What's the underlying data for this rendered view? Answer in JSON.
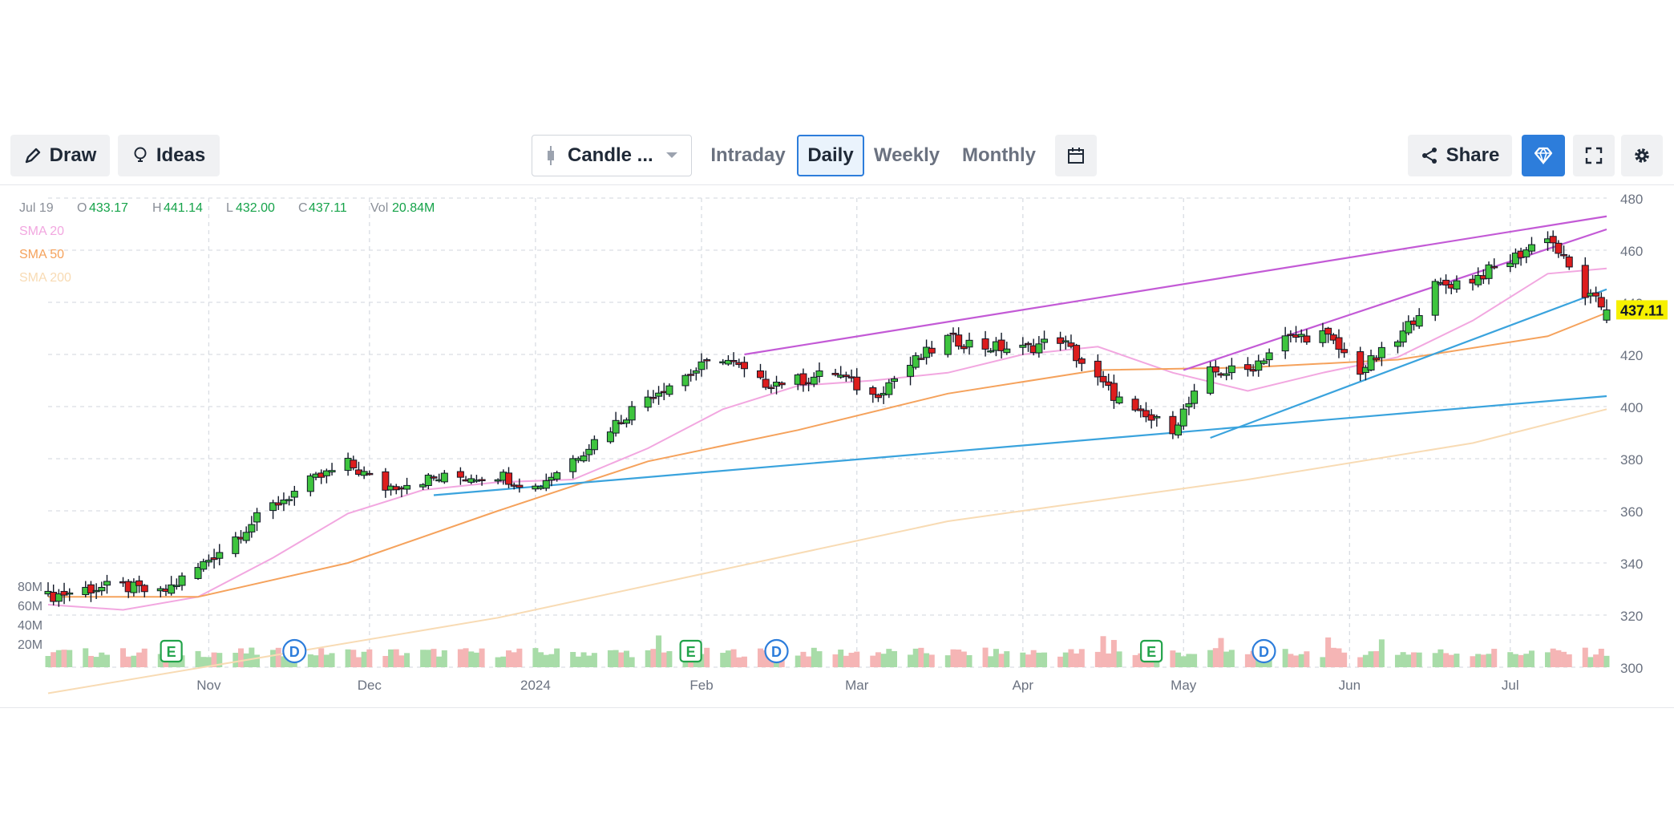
{
  "toolbar": {
    "draw_label": "Draw",
    "ideas_label": "Ideas",
    "chart_type_label": "Candle ...",
    "periods": [
      "Intraday",
      "Daily",
      "Weekly",
      "Monthly"
    ],
    "active_period": "Daily",
    "share_label": "Share"
  },
  "colors": {
    "up": "#3ec43e",
    "down": "#dd1d1d",
    "accent": "#2d7ddb",
    "sma20": "#f2a7e0",
    "sma50": "#f5a25c",
    "sma200": "#f8dbb4",
    "trend_purple": "#c35ad6",
    "trend_blue": "#3aa3dd",
    "price_tag": "#f6f000"
  },
  "ohlc": {
    "date": "Jul 19",
    "o_label": "O",
    "o": "433.17",
    "h_label": "H",
    "h": "441.14",
    "l_label": "L",
    "l": "432.00",
    "c_label": "C",
    "c": "437.11",
    "vol_label": "Vol",
    "vol": "20.84M"
  },
  "legend": [
    "SMA 20",
    "SMA 50",
    "SMA 200"
  ],
  "last_price": "437.11",
  "chart_data": {
    "type": "candlestick",
    "xlabel": "",
    "ylabel": "",
    "x_ticks": [
      "Nov",
      "Dec",
      "2024",
      "Feb",
      "Mar",
      "Apr",
      "May",
      "Jun",
      "Jul"
    ],
    "y_ticks": [
      300,
      320,
      340,
      360,
      380,
      400,
      420,
      440,
      460,
      480
    ],
    "ylim": [
      300,
      480
    ],
    "volume_ticks": [
      "80M",
      "60M",
      "40M",
      "20M"
    ],
    "grid": true,
    "legend_position": "top-left",
    "close_series": [
      {
        "date": "2023-10-02",
        "close": 327
      },
      {
        "date": "2023-10-09",
        "close": 330
      },
      {
        "date": "2023-10-16",
        "close": 331
      },
      {
        "date": "2023-10-23",
        "close": 328
      },
      {
        "date": "2023-10-30",
        "close": 338
      },
      {
        "date": "2023-11-06",
        "close": 350
      },
      {
        "date": "2023-11-13",
        "close": 362
      },
      {
        "date": "2023-11-20",
        "close": 371
      },
      {
        "date": "2023-11-27",
        "close": 378
      },
      {
        "date": "2023-12-04",
        "close": 369
      },
      {
        "date": "2023-12-11",
        "close": 372
      },
      {
        "date": "2023-12-18",
        "close": 373
      },
      {
        "date": "2023-12-25",
        "close": 374
      },
      {
        "date": "2024-01-01",
        "close": 369
      },
      {
        "date": "2024-01-08",
        "close": 380
      },
      {
        "date": "2024-01-15",
        "close": 392
      },
      {
        "date": "2024-01-22",
        "close": 404
      },
      {
        "date": "2024-01-29",
        "close": 412
      },
      {
        "date": "2024-02-05",
        "close": 419
      },
      {
        "date": "2024-02-12",
        "close": 409
      },
      {
        "date": "2024-02-19",
        "close": 410
      },
      {
        "date": "2024-02-26",
        "close": 413
      },
      {
        "date": "2024-03-04",
        "close": 404
      },
      {
        "date": "2024-03-11",
        "close": 416
      },
      {
        "date": "2024-03-18",
        "close": 426
      },
      {
        "date": "2024-03-25",
        "close": 423
      },
      {
        "date": "2024-04-01",
        "close": 422
      },
      {
        "date": "2024-04-08",
        "close": 426
      },
      {
        "date": "2024-04-15",
        "close": 410
      },
      {
        "date": "2024-04-22",
        "close": 397
      },
      {
        "date": "2024-04-29",
        "close": 392
      },
      {
        "date": "2024-05-06",
        "close": 413
      },
      {
        "date": "2024-05-13",
        "close": 414
      },
      {
        "date": "2024-05-20",
        "close": 426
      },
      {
        "date": "2024-05-27",
        "close": 428
      },
      {
        "date": "2024-06-03",
        "close": 414
      },
      {
        "date": "2024-06-10",
        "close": 425
      },
      {
        "date": "2024-06-17",
        "close": 446
      },
      {
        "date": "2024-06-24",
        "close": 449
      },
      {
        "date": "2024-07-01",
        "close": 456
      },
      {
        "date": "2024-07-08",
        "close": 466
      },
      {
        "date": "2024-07-15",
        "close": 443
      },
      {
        "date": "2024-07-19",
        "close": 437.11
      }
    ],
    "series": [
      {
        "name": "SMA 20",
        "values": [
          {
            "date": "2023-10-02",
            "value": 324
          },
          {
            "date": "2023-10-16",
            "value": 322
          },
          {
            "date": "2023-10-30",
            "value": 327
          },
          {
            "date": "2023-11-13",
            "value": 342
          },
          {
            "date": "2023-11-27",
            "value": 359
          },
          {
            "date": "2023-12-11",
            "value": 368
          },
          {
            "date": "2023-12-25",
            "value": 371
          },
          {
            "date": "2024-01-08",
            "value": 372
          },
          {
            "date": "2024-01-22",
            "value": 384
          },
          {
            "date": "2024-02-05",
            "value": 399
          },
          {
            "date": "2024-02-19",
            "value": 408
          },
          {
            "date": "2024-03-04",
            "value": 410
          },
          {
            "date": "2024-03-18",
            "value": 413
          },
          {
            "date": "2024-04-01",
            "value": 420
          },
          {
            "date": "2024-04-15",
            "value": 423
          },
          {
            "date": "2024-04-29",
            "value": 413
          },
          {
            "date": "2024-05-13",
            "value": 406
          },
          {
            "date": "2024-05-27",
            "value": 413
          },
          {
            "date": "2024-06-10",
            "value": 419
          },
          {
            "date": "2024-06-24",
            "value": 433
          },
          {
            "date": "2024-07-08",
            "value": 451
          },
          {
            "date": "2024-07-19",
            "value": 453
          }
        ]
      },
      {
        "name": "SMA 50",
        "values": [
          {
            "date": "2023-10-02",
            "value": 327
          },
          {
            "date": "2023-10-30",
            "value": 327
          },
          {
            "date": "2023-11-27",
            "value": 340
          },
          {
            "date": "2023-12-25",
            "value": 360
          },
          {
            "date": "2024-01-22",
            "value": 379
          },
          {
            "date": "2024-02-19",
            "value": 391
          },
          {
            "date": "2024-03-18",
            "value": 405
          },
          {
            "date": "2024-04-15",
            "value": 414
          },
          {
            "date": "2024-05-13",
            "value": 415
          },
          {
            "date": "2024-06-10",
            "value": 418
          },
          {
            "date": "2024-07-08",
            "value": 427
          },
          {
            "date": "2024-07-19",
            "value": 436
          }
        ]
      },
      {
        "name": "SMA 200",
        "values": [
          {
            "date": "2023-10-02",
            "value": 290
          },
          {
            "date": "2023-12-25",
            "value": 319
          },
          {
            "date": "2024-03-18",
            "value": 356
          },
          {
            "date": "2024-05-13",
            "value": 372
          },
          {
            "date": "2024-06-24",
            "value": 386
          },
          {
            "date": "2024-07-19",
            "value": 399
          }
        ]
      }
    ],
    "trendlines": [
      {
        "color": "purple",
        "points": [
          {
            "date": "2024-02-09",
            "value": 420
          },
          {
            "date": "2024-07-19",
            "value": 473
          }
        ]
      },
      {
        "color": "purple",
        "points": [
          {
            "date": "2024-05-01",
            "value": 414
          },
          {
            "date": "2024-07-19",
            "value": 468
          }
        ]
      },
      {
        "color": "blue",
        "points": [
          {
            "date": "2023-12-13",
            "value": 366
          },
          {
            "date": "2024-07-19",
            "value": 404
          }
        ]
      },
      {
        "color": "blue",
        "points": [
          {
            "date": "2024-05-06",
            "value": 388
          },
          {
            "date": "2024-07-19",
            "value": 445
          }
        ]
      }
    ],
    "events": [
      {
        "type": "E",
        "date": "2023-10-25"
      },
      {
        "type": "D",
        "date": "2023-11-17"
      },
      {
        "type": "E",
        "date": "2024-01-30"
      },
      {
        "type": "D",
        "date": "2024-02-15"
      },
      {
        "type": "E",
        "date": "2024-04-25"
      },
      {
        "type": "D",
        "date": "2024-05-16"
      }
    ]
  }
}
